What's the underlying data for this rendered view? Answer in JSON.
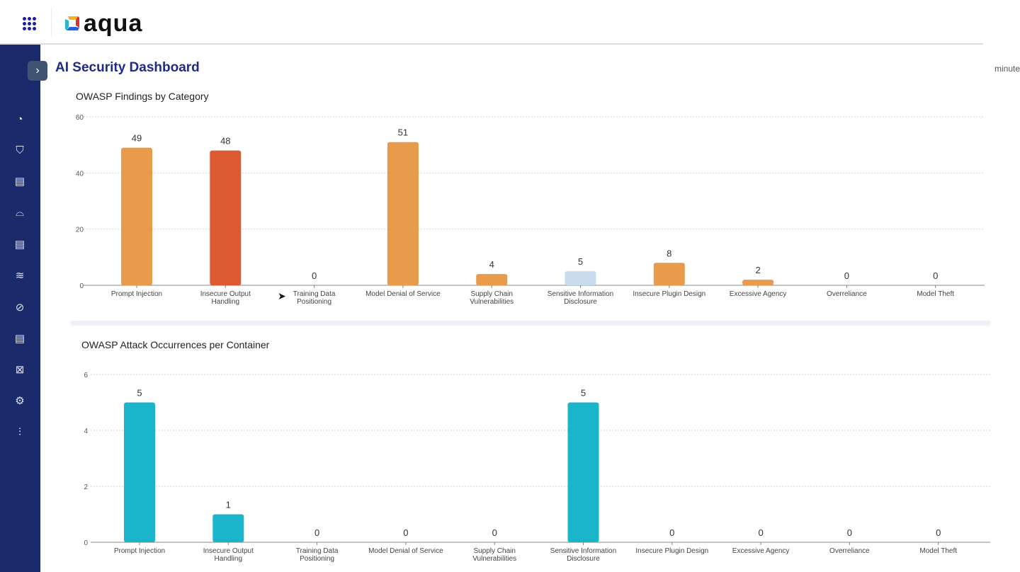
{
  "header": {
    "logo_text": "aqua",
    "apps_icon": "grid-icon"
  },
  "page": {
    "title": "AI Security Dashboard",
    "side_text": "minute"
  },
  "sidebar": {
    "icons": [
      "gauge-icon",
      "shield-icon",
      "document-icon",
      "jellyfish-icon",
      "document-icon",
      "database-icon",
      "pill-icon",
      "document-icon",
      "chart-icon",
      "gear-icon",
      "sliders-icon"
    ]
  },
  "colors": {
    "orange": "#e89b4a",
    "red": "#dc5a32",
    "lightblue": "#c9dcef",
    "teal": "#1bb5cb",
    "sidebar": "#1b2a6b",
    "title": "#1e2a8c"
  },
  "chart_data": [
    {
      "type": "bar",
      "title": "OWASP Findings by Category",
      "ylim": [
        0,
        60
      ],
      "yticks": [
        0,
        20,
        40,
        60
      ],
      "grid": true,
      "categories": [
        "Prompt Injection",
        "Insecure Output Handling",
        "Training Data Positioning",
        "Model Denial of Service",
        "Supply Chain Vulnerabilities",
        "Sensitive Information Disclosure",
        "Insecure Plugin Design",
        "Excessive Agency",
        "Overreliance",
        "Model Theft"
      ],
      "values": [
        49,
        48,
        0,
        51,
        4,
        5,
        8,
        2,
        0,
        0
      ],
      "bar_colors": [
        "#e89b4a",
        "#dc5a32",
        "#e89b4a",
        "#e89b4a",
        "#e89b4a",
        "#c9dcef",
        "#e89b4a",
        "#e89b4a",
        "#e89b4a",
        "#e89b4a"
      ]
    },
    {
      "type": "bar",
      "title": "OWASP Attack Occurrences per Container",
      "ylim": [
        0,
        6
      ],
      "yticks": [
        0,
        2,
        4,
        6
      ],
      "grid": true,
      "categories": [
        "Prompt Injection",
        "Insecure Output Handling",
        "Training Data Positioning",
        "Model Denial of Service",
        "Supply Chain Vulnerabilities",
        "Sensitive Information Disclosure",
        "Insecure Plugin Design",
        "Excessive Agency",
        "Overreliance",
        "Model Theft"
      ],
      "values": [
        5,
        1,
        0,
        0,
        0,
        5,
        0,
        0,
        0,
        0
      ],
      "bar_colors": [
        "#1bb5cb",
        "#1bb5cb",
        "#1bb5cb",
        "#1bb5cb",
        "#1bb5cb",
        "#1bb5cb",
        "#1bb5cb",
        "#1bb5cb",
        "#1bb5cb",
        "#1bb5cb"
      ]
    }
  ]
}
